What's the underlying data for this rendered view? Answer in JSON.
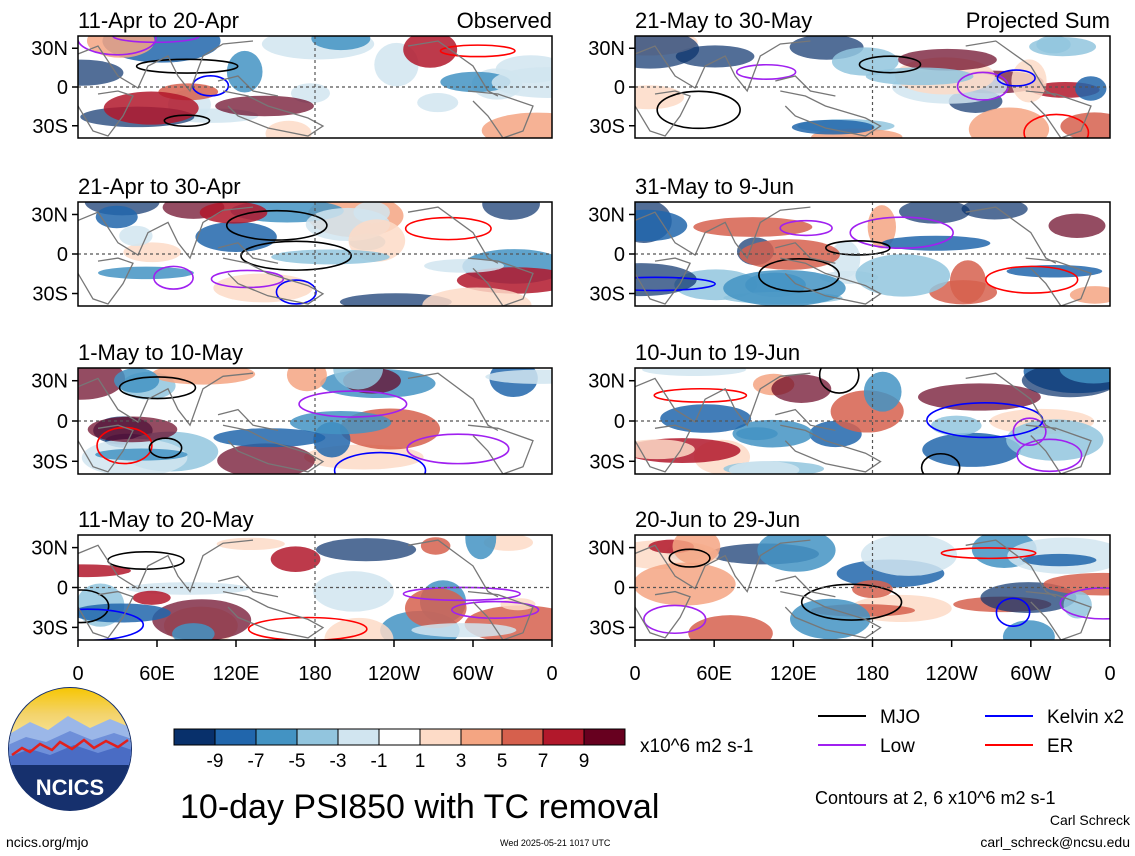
{
  "footer": {
    "main_title": "10-day PSI850 with TC removal",
    "site": "ncics.org/mjo",
    "timestamp": "Wed 2025-05-21 1017 UTC",
    "author": "Carl Schreck",
    "email": "carl_schreck@ncsu.edu",
    "contour_note": "Contours at 2, 6 x10^6 m2 s-1",
    "logo_text": "NCICS"
  },
  "colorbar": {
    "unit": "x10^6 m2 s-1",
    "ticks": [
      "-9",
      "-7",
      "-5",
      "-3",
      "-1",
      "1",
      "3",
      "5",
      "7",
      "9"
    ],
    "colors": [
      "#08306b",
      "#2166ac",
      "#4393c3",
      "#92c5de",
      "#d1e5f0",
      "#ffffff",
      "#fddbc7",
      "#f4a582",
      "#d6604d",
      "#b2182b",
      "#67001f"
    ]
  },
  "legend": {
    "items": [
      {
        "label": "MJO",
        "color": "#000000"
      },
      {
        "label": "Kelvin x2",
        "color": "#0000ff"
      },
      {
        "label": "Low",
        "color": "#a020f0"
      },
      {
        "label": "ER",
        "color": "#ff0000"
      }
    ]
  },
  "chart_data": {
    "type": "heatmap",
    "x_tick_labels": [
      "0",
      "60E",
      "120E",
      "180",
      "120W",
      "60W",
      "0"
    ],
    "y_tick_labels": [
      "30N",
      "0",
      "30S"
    ],
    "panels": [
      {
        "title": "11-Apr to 20-Apr",
        "tag": "Observed"
      },
      {
        "title": "21-May to 30-May",
        "tag": "Projected Sum"
      },
      {
        "title": "21-Apr to 30-Apr",
        "tag": ""
      },
      {
        "title": "31-May to 9-Jun",
        "tag": ""
      },
      {
        "title": "1-May to 10-May",
        "tag": ""
      },
      {
        "title": "10-Jun to 19-Jun",
        "tag": ""
      },
      {
        "title": "11-May to 20-May",
        "tag": ""
      },
      {
        "title": "20-Jun to 29-Jun",
        "tag": ""
      }
    ]
  }
}
